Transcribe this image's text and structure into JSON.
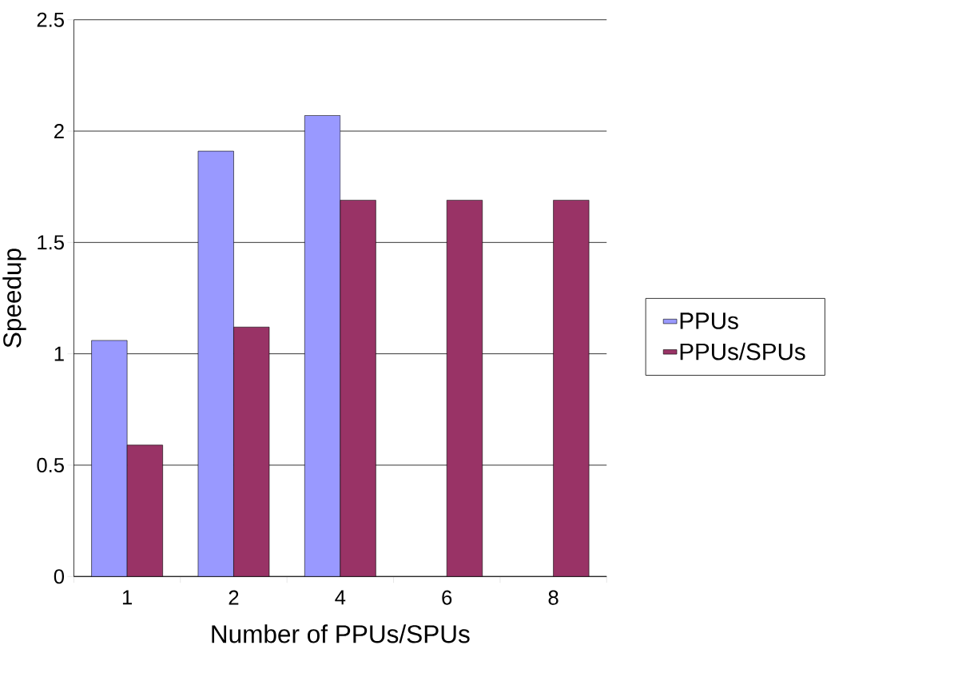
{
  "chart_data": {
    "type": "bar",
    "xlabel": "Number of PPUs/SPUs",
    "ylabel": "Speedup",
    "categories": [
      "1",
      "2",
      "4",
      "6",
      "8"
    ],
    "series": [
      {
        "name": "PPUs",
        "color": "#9999ff",
        "values": [
          1.06,
          1.91,
          2.07,
          null,
          null
        ]
      },
      {
        "name": "PPUs/SPUs",
        "color": "#993366",
        "values": [
          0.59,
          1.12,
          1.69,
          1.69,
          1.69
        ]
      }
    ],
    "ylim": [
      0,
      2.5
    ],
    "yticks": [
      0,
      0.5,
      1,
      1.5,
      2,
      2.5
    ],
    "grid": "y",
    "legend": "right"
  }
}
